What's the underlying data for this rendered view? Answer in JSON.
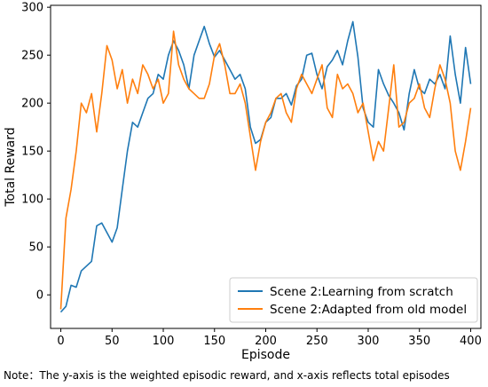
{
  "chart_data": {
    "type": "line",
    "title": "",
    "xlabel": "Episode",
    "ylabel": "Total Reward",
    "xlim": [
      -10,
      410
    ],
    "ylim": [
      -35,
      302
    ],
    "xticks": [
      0,
      50,
      100,
      150,
      200,
      250,
      300,
      350,
      400
    ],
    "yticks": [
      0,
      50,
      100,
      150,
      200,
      250,
      300
    ],
    "grid": false,
    "legend_position": "lower-right",
    "series": [
      {
        "name": "Scene 2:Learning from scratch",
        "color": "#1f77b4",
        "x": [
          0,
          5,
          10,
          15,
          20,
          25,
          30,
          35,
          40,
          45,
          50,
          55,
          60,
          65,
          70,
          75,
          80,
          85,
          90,
          95,
          100,
          105,
          110,
          115,
          120,
          125,
          130,
          135,
          140,
          145,
          150,
          155,
          160,
          165,
          170,
          175,
          180,
          185,
          190,
          195,
          200,
          205,
          210,
          215,
          220,
          225,
          230,
          235,
          240,
          245,
          250,
          255,
          260,
          265,
          270,
          275,
          280,
          285,
          290,
          295,
          300,
          305,
          310,
          315,
          320,
          325,
          330,
          335,
          340,
          345,
          350,
          355,
          360,
          365,
          370,
          375,
          380,
          385,
          390,
          395,
          400
        ],
        "y": [
          -18,
          -12,
          10,
          8,
          25,
          30,
          35,
          72,
          75,
          65,
          55,
          70,
          110,
          150,
          180,
          175,
          190,
          205,
          210,
          230,
          225,
          250,
          265,
          255,
          240,
          215,
          250,
          265,
          280,
          262,
          248,
          255,
          245,
          235,
          225,
          230,
          215,
          175,
          158,
          162,
          180,
          185,
          205,
          205,
          210,
          198,
          218,
          225,
          250,
          252,
          230,
          215,
          238,
          245,
          255,
          240,
          265,
          285,
          248,
          195,
          180,
          175,
          235,
          220,
          208,
          200,
          190,
          172,
          210,
          235,
          215,
          210,
          225,
          220,
          230,
          215,
          270,
          230,
          200,
          258,
          220
        ]
      },
      {
        "name": "Scene 2:Adapted from old model",
        "color": "#ff7f0e",
        "x": [
          0,
          5,
          10,
          15,
          20,
          25,
          30,
          35,
          40,
          45,
          50,
          55,
          60,
          65,
          70,
          75,
          80,
          85,
          90,
          95,
          100,
          105,
          110,
          115,
          120,
          125,
          130,
          135,
          140,
          145,
          150,
          155,
          160,
          165,
          170,
          175,
          180,
          185,
          190,
          195,
          200,
          205,
          210,
          215,
          220,
          225,
          230,
          235,
          240,
          245,
          250,
          255,
          260,
          265,
          270,
          275,
          280,
          285,
          290,
          295,
          300,
          305,
          310,
          315,
          320,
          325,
          330,
          335,
          340,
          345,
          350,
          355,
          360,
          365,
          370,
          375,
          380,
          385,
          390,
          395,
          400
        ],
        "y": [
          -15,
          80,
          110,
          150,
          200,
          190,
          210,
          170,
          210,
          260,
          245,
          215,
          235,
          200,
          225,
          210,
          240,
          230,
          215,
          225,
          200,
          210,
          275,
          240,
          225,
          215,
          210,
          205,
          205,
          220,
          250,
          262,
          240,
          210,
          210,
          220,
          200,
          165,
          130,
          160,
          180,
          190,
          205,
          210,
          190,
          180,
          215,
          230,
          220,
          210,
          225,
          240,
          195,
          185,
          230,
          215,
          220,
          210,
          190,
          200,
          170,
          140,
          160,
          150,
          195,
          240,
          175,
          180,
          200,
          205,
          220,
          195,
          185,
          215,
          240,
          225,
          200,
          150,
          130,
          160,
          195
        ]
      }
    ]
  },
  "note": "Note：The y-axis is the weighted episodic reward, and x-axis reflects total episodes"
}
